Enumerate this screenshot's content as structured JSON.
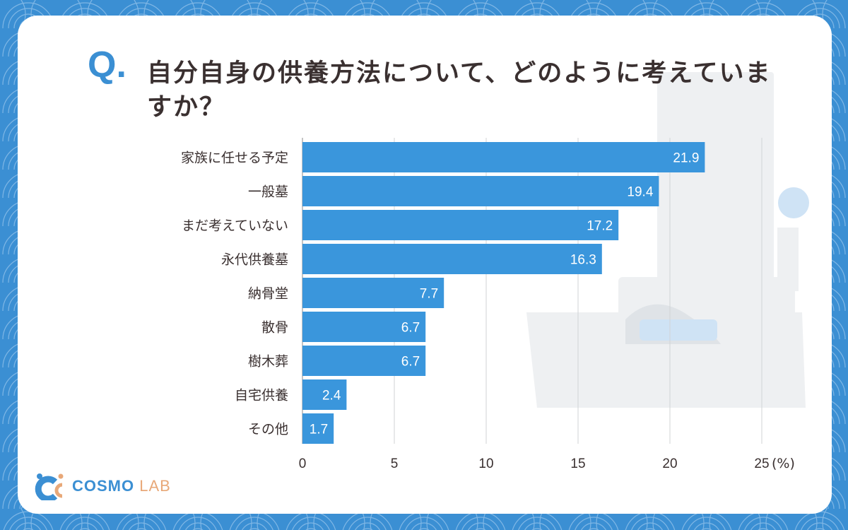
{
  "title": {
    "prefix": "Q.",
    "text": "自分自身の供養方法について、どのように考えていますか？"
  },
  "colors": {
    "background": "#3b8fd3",
    "bar": "#3a96dc",
    "text": "#3a3030",
    "logo_blue": "#3b8fd3",
    "logo_orange": "#e8a878"
  },
  "logo": {
    "brand": "COSMO",
    "suffix": "LAB"
  },
  "chart_data": {
    "type": "bar",
    "orientation": "horizontal",
    "categories": [
      "家族に任せる予定",
      "一般墓",
      "まだ考えていない",
      "永代供養墓",
      "納骨堂",
      "散骨",
      "樹木葬",
      "自宅供養",
      "その他"
    ],
    "values": [
      21.9,
      19.4,
      17.2,
      16.3,
      7.7,
      6.7,
      6.7,
      2.4,
      1.7
    ],
    "xlim": [
      0,
      25
    ],
    "xticks": [
      0,
      5,
      10,
      15,
      20,
      25
    ],
    "xunit": "(%)",
    "grid": true,
    "data_labels": true
  }
}
